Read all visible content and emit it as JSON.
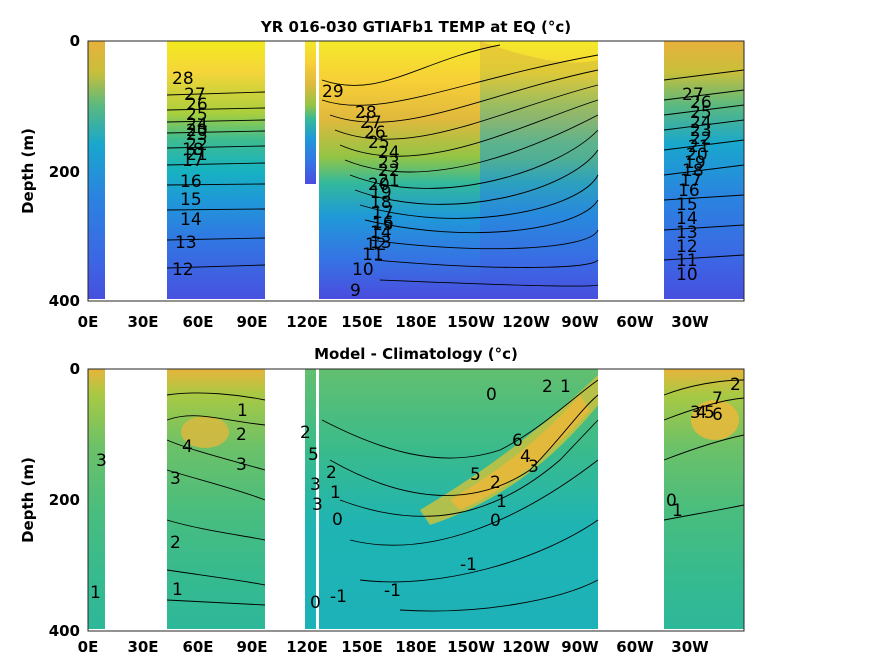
{
  "chart_data": [
    {
      "type": "heatmap",
      "title": "YR 016-030 GTIAFb1 TEMP at EQ (°c)",
      "ylabel": "Depth (m)",
      "x_ticks": [
        "0E",
        "30E",
        "60E",
        "90E",
        "120E",
        "150E",
        "180E",
        "150W",
        "120W",
        "90W",
        "60W",
        "30W"
      ],
      "y_ticks": [
        "0",
        "200",
        "400"
      ],
      "ylim": [
        400,
        0
      ],
      "colormap": "parula",
      "contour_labels": [
        "28",
        "27",
        "26",
        "25",
        "24",
        "23",
        "22",
        "21",
        "20",
        "18",
        "17",
        "16",
        "15",
        "14",
        "13",
        "12",
        "29",
        "28",
        "27",
        "26",
        "25",
        "24",
        "23",
        "22",
        "21",
        "20",
        "19",
        "18",
        "17",
        "16",
        "15",
        "14",
        "13",
        "12",
        "11",
        "10",
        "9",
        "27",
        "26",
        "25",
        "24",
        "23",
        "22",
        "21",
        "20",
        "19",
        "18",
        "17",
        "16",
        "15",
        "14",
        "13",
        "12",
        "11",
        "10"
      ],
      "surface_temp_range_c": [
        9,
        29
      ],
      "land_masked": true
    },
    {
      "type": "heatmap",
      "title": "Model - Climatology (°c)",
      "ylabel": "Depth (m)",
      "x_ticks": [
        "0E",
        "30E",
        "60E",
        "90E",
        "120E",
        "150E",
        "180E",
        "150W",
        "120W",
        "90W",
        "60W",
        "30W"
      ],
      "y_ticks": [
        "0",
        "200",
        "400"
      ],
      "ylim": [
        400,
        0
      ],
      "colormap": "parula",
      "contour_labels": [
        "1",
        "2",
        "3",
        "4",
        "3",
        "2",
        "1",
        "1",
        "3",
        "2",
        "5",
        "3",
        "3",
        "2",
        "1",
        "0",
        "0",
        "-1",
        "-1",
        "0",
        "1",
        "2",
        "3",
        "4",
        "5",
        "6",
        "2",
        "1",
        "0",
        "-1",
        "7",
        "6",
        "5",
        "4",
        "3",
        "2",
        "1",
        "0"
      ],
      "anomaly_range_c": [
        -1,
        7
      ],
      "land_masked": true
    }
  ]
}
